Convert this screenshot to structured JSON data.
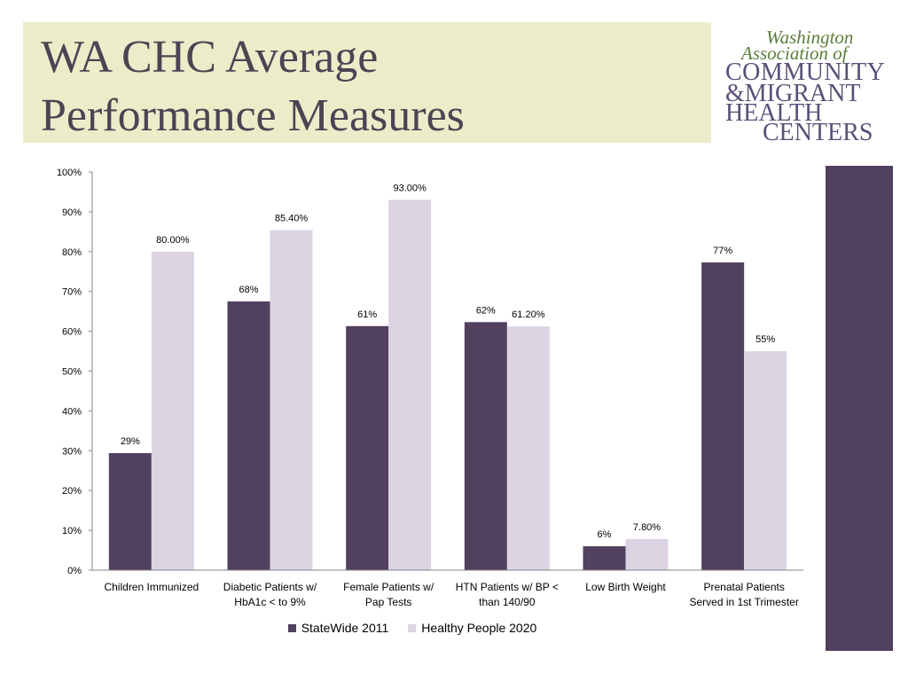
{
  "slide": {
    "title_lines": [
      "WA CHC Average",
      "Performance Measures"
    ],
    "logo": {
      "lines": [
        "Washington",
        "Association of",
        "COMMUNITY",
        "&MIGRANT",
        "HEALTH",
        "CENTERS"
      ],
      "colors": {
        "script": "#5a7d3a",
        "caps": "#5b4f77"
      }
    },
    "accent_bar_color": "#51405e",
    "title_bg_color": "#ebedc9"
  },
  "chart_data": {
    "type": "bar",
    "title": "",
    "xlabel": "",
    "ylabel": "",
    "ylim": [
      0,
      100
    ],
    "yticks": [
      0,
      10,
      20,
      30,
      40,
      50,
      60,
      70,
      80,
      90,
      100
    ],
    "ytick_labels": [
      "0%",
      "10%",
      "20%",
      "30%",
      "40%",
      "50%",
      "60%",
      "70%",
      "80%",
      "90%",
      "100%"
    ],
    "grid": false,
    "legend_position": "bottom",
    "categories": [
      [
        "Children Immunized"
      ],
      [
        "Diabetic Patients w/",
        "HbA1c < to 9%"
      ],
      [
        "Female Patients w/",
        "Pap Tests"
      ],
      [
        "HTN Patients w/ BP <",
        "than 140/90"
      ],
      [
        "Low Birth Weight"
      ],
      [
        "Prenatal Patients",
        "Served in 1st Trimester"
      ]
    ],
    "series": [
      {
        "name": "StateWide 2011",
        "color": "#51405e",
        "values": [
          29.4,
          67.5,
          61.3,
          62.3,
          6.0,
          77.3
        ],
        "labels": [
          "29%",
          "68%",
          "61%",
          "62%",
          "6%",
          "77%"
        ]
      },
      {
        "name": "Healthy People 2020",
        "color": "#dcd3e3",
        "values": [
          80.0,
          85.4,
          93.0,
          61.2,
          7.8,
          55.0
        ],
        "labels": [
          "80.00%",
          "85.40%",
          "93.00%",
          "61.20%",
          "7.80%",
          "55%"
        ]
      }
    ]
  }
}
